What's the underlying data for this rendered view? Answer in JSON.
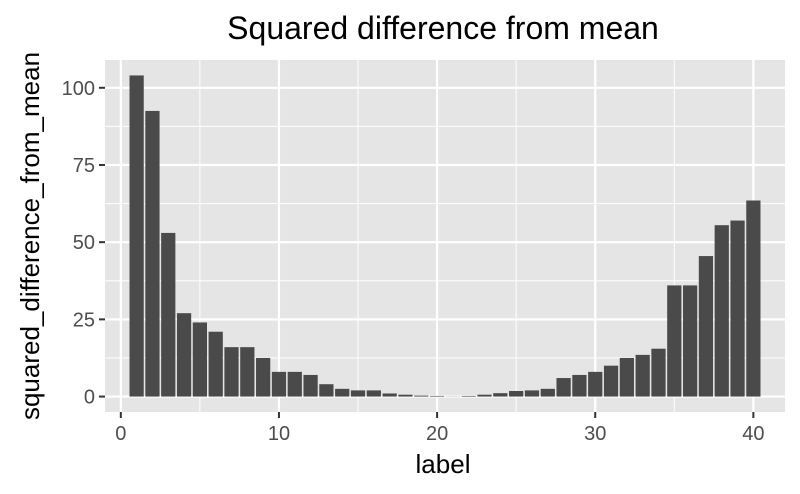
{
  "chart_data": {
    "type": "bar",
    "title": "Squared difference from mean",
    "xlabel": "label",
    "ylabel": "squared_difference_from_mean",
    "xlim": [
      -1,
      42
    ],
    "ylim": [
      -5,
      109
    ],
    "x_ticks": [
      0,
      10,
      20,
      30,
      40
    ],
    "y_ticks": [
      0,
      25,
      50,
      75,
      100
    ],
    "grid": true,
    "legend": "none",
    "colors": {
      "panel_background": "#e5e5e5",
      "grid": "#ffffff",
      "bar_fill": "#4a4a4a",
      "tick_mark": "#333333",
      "tick_label": "#4d4d4d"
    },
    "x": [
      1,
      2,
      3,
      4,
      5,
      6,
      7,
      8,
      9,
      10,
      11,
      12,
      13,
      14,
      15,
      16,
      17,
      18,
      19,
      20,
      21,
      22,
      23,
      24,
      25,
      26,
      27,
      28,
      29,
      30,
      31,
      32,
      33,
      34,
      35,
      36,
      37,
      38,
      39,
      40
    ],
    "values": [
      104,
      92.5,
      53,
      27,
      24,
      21,
      16,
      16,
      12.5,
      8,
      8,
      7,
      4,
      2.5,
      2,
      2,
      1,
      0.6,
      0.3,
      0.2,
      0.05,
      0.2,
      0.6,
      1.1,
      1.8,
      2,
      2.5,
      6,
      7,
      8,
      10,
      12.5,
      13.5,
      15.5,
      36,
      36,
      45.5,
      55.5,
      57,
      63.5
    ]
  }
}
